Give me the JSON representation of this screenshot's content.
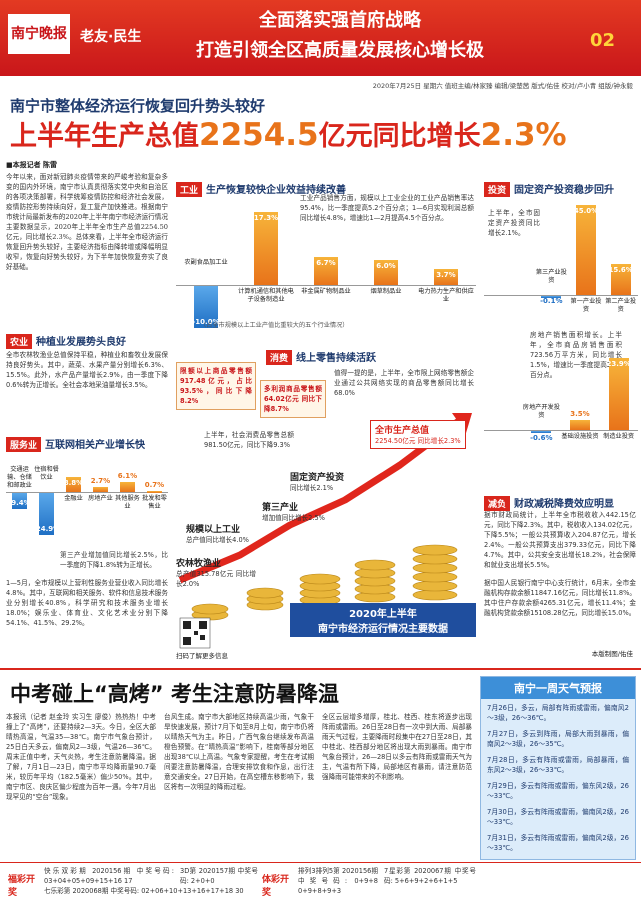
{
  "header": {
    "logo": "南宁晚报",
    "section": "老友·民生",
    "banner_1": "全面落实强首府战略",
    "banner_2": "打造引领全区高质量发展核心增长极",
    "page": "02",
    "dateline": "2020年7月25日 星期六 值班主编/林家臻 编辑/梁楚茜 版式/佑佳 校对/卢小青 组版/钟永毅"
  },
  "headline": {
    "kicker": "南宁市整体经济运行恢复回升势头较好",
    "main_1": "上半年生产总值",
    "main_num_1": "2254.5",
    "main_2": "亿元同比增长",
    "main_num_2": "2.3%"
  },
  "intro": {
    "byline": "■本报记者 陈雷",
    "text": "今年以来，面对新冠肺炎疫情带来的严峻考验和复杂多变的国内外环境，南宁市认真贯彻落实党中央和自治区的各项决策部署，科学统筹疫情防控和经济社会发展，疫情防控形势持续向好，复工复产加快推进。根据南宁市统计局最新发布的2020年上半年南宁市经济运行情况主要数据显示，2020年上半年全市生产总值2254.50亿元，同比增长2.3%。总体来看，上半年全市经济运行恢复回升势头较好，主要经济指标由降转增或降幅明显收窄，恢复向好势头较好，为下半年加快恢复夯实了良好基础。"
  },
  "agri": {
    "tag": "农业",
    "title": "种植业发展势头良好",
    "text": "全市农林牧渔业总值保持平稳，种植业和畜牧业发展保持良好势头。其中，蔬菜、水果产量分别增长6.3%、15.5%。此外，水产品产量增长2.9%，由一季度下降0.6%转为正增长。全社会本地采油量增长3.5%。"
  },
  "service": {
    "tag": "服务业",
    "title": "互联网相关产业增长快",
    "chart": {
      "categories": [
        "交通运输、仓储和邮政业",
        "住宿和餐饮业",
        "金融业",
        "房地产业",
        "其他服务业",
        "批发和零售业"
      ],
      "values": [
        -9.4,
        -24.9,
        8.8,
        2.7,
        6.1,
        0.7
      ],
      "value_labels": [
        "-9.4%",
        "-24.9%",
        "8.8%",
        "2.7%",
        "6.1%",
        "0.7%"
      ]
    },
    "text_1": "第三产业增加值同比增长2.5%，比一季度的下降1.8%转为正增长。",
    "text_2": "1—5月，全市规模以上营利性服务业营业收入同比增长4.8%。其中，互联网和相关服务、软件和信息技术服务业分别增长40.8%，科学研究和技术服务业增长18.0%；娱乐业、体育业、文化艺术业分别下降54.1%、41.5%、29.2%。"
  },
  "industry": {
    "tag": "工业",
    "title": "生产恢复较快企业效益持续改善",
    "text": "工业产品销售方面，规模以上工业企业的工业产品销售率达95.4%，比一季度提高5.2个百分点；1—6月实现利润总额同比增长4.8%，增速比1—2月提高4.5个百分点。",
    "chart": {
      "categories": [
        "农副食品加工业",
        "计算机通信和其他电子设备制造业",
        "非金属矿物制品业",
        "烟草制品业",
        "电力热力生产和供应业"
      ],
      "values": [
        -10.0,
        17.3,
        6.7,
        6.0,
        3.7
      ],
      "value_labels": [
        "-10.0%",
        "17.3%",
        "6.7%",
        "6.0%",
        "3.7%"
      ]
    },
    "note": "（占全市规模以上工业产值比重较大的五个行业情况）"
  },
  "invest": {
    "tag": "投资",
    "title": "固定资产投资稳步回升",
    "text_1": "上半年，全市固定资产投资同比增长2.1%。",
    "chart_1": {
      "categories": [
        "第三产业投资",
        "第一产业投资",
        "第二产业投资"
      ],
      "values": [
        -0.1,
        45.0,
        15.6
      ],
      "value_labels": [
        "-0.1%",
        "45.0%",
        "15.6%"
      ]
    },
    "text_2": "房地产销售面积增长。上半年，全市商品房销售面积723.56万平方米，同比增长1.5%，增速比一季度提高27个百分点。",
    "chart_2": {
      "categories": [
        "房地产开发投资",
        "基础设施投资",
        "制造业投资"
      ],
      "values": [
        -0.6,
        3.5,
        23.9
      ],
      "value_labels": [
        "-0.6%",
        "3.5%",
        "23.9%"
      ]
    }
  },
  "consume": {
    "tag": "消费",
    "title": "线上零售持续活跃",
    "box_1": "限额以上商品零售额917.48亿元，占比93.5%，同比下降8.2%",
    "box_2": "多利润商品零售额64.02亿元 同比下降8.7%",
    "text": "值得一提的是，上半年，全市限上网络零售额企业通过公共网络实现的商品零售额同比增长68.0%",
    "total": "上半年，社会消费品零售总额981.50亿元，同比下降9.3%"
  },
  "summary": {
    "banner_1": "2020年上半年",
    "banner_2": "南宁市经济运行情况主要数据",
    "items": [
      {
        "label": "全市生产总值",
        "value": "2254.50亿元 同比增长2.3%"
      },
      {
        "label": "固定资产投资",
        "value": "同比增长2.1%"
      },
      {
        "label": "第三产业",
        "value": "增加值同比增长2.5%"
      },
      {
        "label": "规模以上工业",
        "value": "总产值同比增长4.0%"
      },
      {
        "label": "农林牧渔业",
        "value": "总产值315.78亿元 同比增长2.0%"
      }
    ],
    "qr": "扫码了解更多信息"
  },
  "tax": {
    "tag": "减负",
    "title": "财政减税降费效应明显",
    "text_1": "据市财政局统计，上半年全市税收收入442.15亿元，同比下降2.3%。其中，税收收入134.02亿元，下降5.5%；一般公共预算收入204.87亿元，增长2.4%。一般公共预算支出379.33亿元，同比下降4.7%。其中，公共安全支出增长18.2%，社会保障和就业支出增长5.5%。",
    "text_2": "据中国人民银行南宁中心支行统计，6月末，全市金融机构存款余额11847.16亿元，同比增长11.8%。其中住户存款余额4265.31亿元，增长11.4%；金融机构贷款余额15108.28亿元，同比增长15.0%。",
    "credit": "本版制图/佑佳"
  },
  "exam": {
    "title": "中考碰上“高烤” 考生注意防暑降温",
    "col_1": "本报讯（记者 赵金玲 实习生 廖俊）热热热！中考撞上了“高烤”，还要持续2—3天。今日，全区大部晴热高温，气温35—38℃。南宁市气象台预计，25日白天多云，偏南风2—3级，气温26—36℃。周末正值中考，天气炎热，考生注意防暑降温。据了解，7月1日—23日，南宁市平均降雨量90.7毫米，较历年平均（182.5毫米）偏少50%。其中，南宁市区、良庆区偏少程度为百年一遇。今年7月出现罕见的“空台”现象。",
    "col_2": "台风生成。南宁市大部地区持续高温少雨，气象干旱快速发展，预计7月下旬至8月上旬，南宁市仍将以晴热天气为主。昨日，广西气象台继续发布高温橙色预警。在“晴热高温”影响下，桂南等部分地区出现38℃以上高温。气象专家提醒，考生在考试期间要注意防暑降温，合理安排饮食和作息，出行注意交通安全。27日开始，在高空槽东移影响下，我区将有一次明显的降雨过程。",
    "col_3": "全区云层增多增厚，桂北、桂西、桂东将逐步出现阵雨或雷雨。26日至28日有一次中到大雨、局部暴雨天气过程，主要降雨时段集中在27日至28日，其中桂北、桂西部分地区将出现大雨到暴雨。南宁市气象台预计，26—28日以多云有阵雨或雷雨天气为主，气温有所下降，局部地区有暴雨，请注意防范强降雨可能带来的不利影响。"
  },
  "weather": {
    "title": "南宁一周天气预报",
    "days": [
      "7月26日，多云，局部有阵雨或雷雨，偏南风2～3级，26～36℃。",
      "7月27日，多云到阵雨，局部大雨到暴雨，偏南风2～3级，26～35℃。",
      "7月28日，多云有阵雨或雷雨，局部暴雨，偏东风2～3级，26～33℃。",
      "7月29日，多云有阵雨或雷雨，偏东风2级，26～33℃。",
      "7月30日，多云有阵雨或雷雨，偏南风2级，26～33℃。",
      "7月31日，多云有阵雨或雷雨，偏南风2级，26～33℃。"
    ]
  },
  "lottery": {
    "welfare": "福彩开奖",
    "sport": "体彩开奖",
    "items": [
      "快乐双彩期 2020156期 中奖号码: 03+04+05+09+15+16 17",
      "3D第 2020157期 中奖号码: 2+0+0",
      "七乐彩第 2020068期 中奖号码: 02+06+10+13+16+17+18 30",
      "排列3排列5第 2020156期 中奖号码: 0+9+8 0+9+8+9+3",
      "7星彩第 2020067期 中奖号码: 5+6+9+2+6+1+5"
    ]
  }
}
